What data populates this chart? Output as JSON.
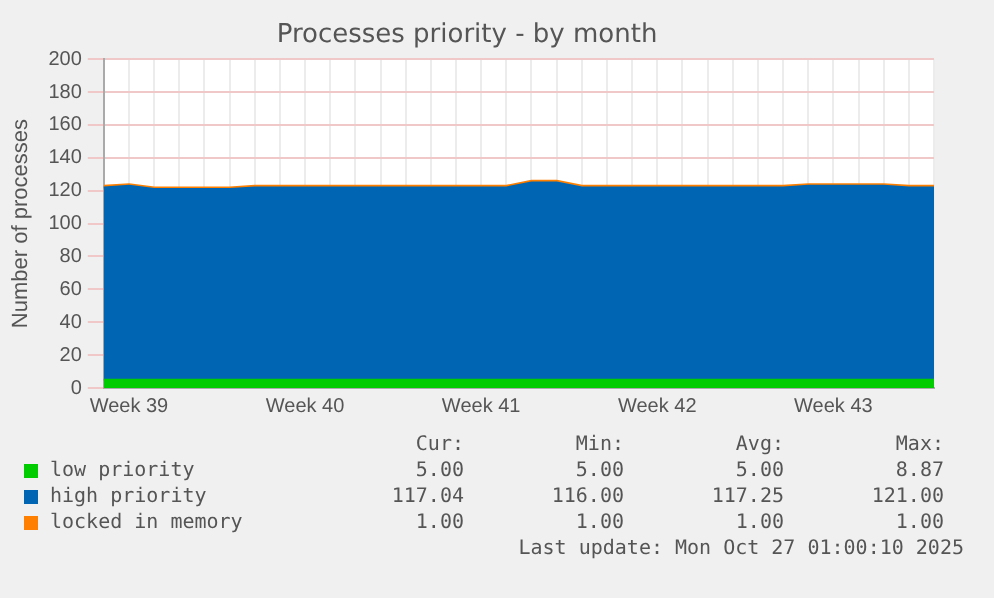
{
  "chart_data": {
    "type": "area",
    "stacked": true,
    "title": "Processes priority - by month",
    "ylabel": "Number of processes",
    "categories": [
      null,
      "Week 39",
      null,
      null,
      null,
      null,
      null,
      null,
      "Week 40",
      null,
      null,
      null,
      null,
      null,
      null,
      "Week 41",
      null,
      null,
      null,
      null,
      null,
      null,
      "Week 42",
      null,
      null,
      null,
      null,
      null,
      null,
      "Week 43",
      null,
      null,
      null,
      null
    ],
    "series": [
      {
        "name": "low priority",
        "color": "#00cc00",
        "values": [
          5,
          5,
          5,
          5,
          5,
          5,
          5,
          5,
          5,
          5,
          5,
          5,
          5,
          5,
          5,
          5,
          5,
          5,
          5,
          5,
          5,
          5,
          5,
          5,
          5,
          5,
          5,
          5,
          5,
          5,
          5,
          5,
          5,
          5
        ]
      },
      {
        "name": "high priority",
        "color": "#0066b3",
        "values": [
          117,
          118,
          116,
          116,
          116,
          116,
          117,
          117,
          117,
          117,
          117,
          117,
          117,
          117,
          117,
          117,
          117,
          120,
          120,
          117,
          117,
          117,
          117,
          117,
          117,
          117,
          117,
          117,
          118,
          118,
          118,
          118,
          117,
          117
        ]
      },
      {
        "name": "locked in memory",
        "color": "#ff8000",
        "values": [
          1,
          1,
          1,
          1,
          1,
          1,
          1,
          1,
          1,
          1,
          1,
          1,
          1,
          1,
          1,
          1,
          1,
          1,
          1,
          1,
          1,
          1,
          1,
          1,
          1,
          1,
          1,
          1,
          1,
          1,
          1,
          1,
          1,
          1
        ]
      }
    ],
    "ylim": [
      0,
      200
    ],
    "yticks": [
      0,
      20,
      40,
      60,
      80,
      100,
      120,
      140,
      160,
      180,
      200
    ],
    "grid": true,
    "legend": "bottom",
    "marker": "none",
    "annotations": [
      "Cur:",
      "Min:",
      "Avg:",
      "Max:",
      "5.00",
      "5.00",
      "5.00",
      "8.87",
      "117.04",
      "116.00",
      "117.25",
      "121.00",
      "1.00",
      "1.00",
      "1.00",
      "1.00",
      "Last update: Mon Oct 27 01:00:10 2025"
    ]
  }
}
